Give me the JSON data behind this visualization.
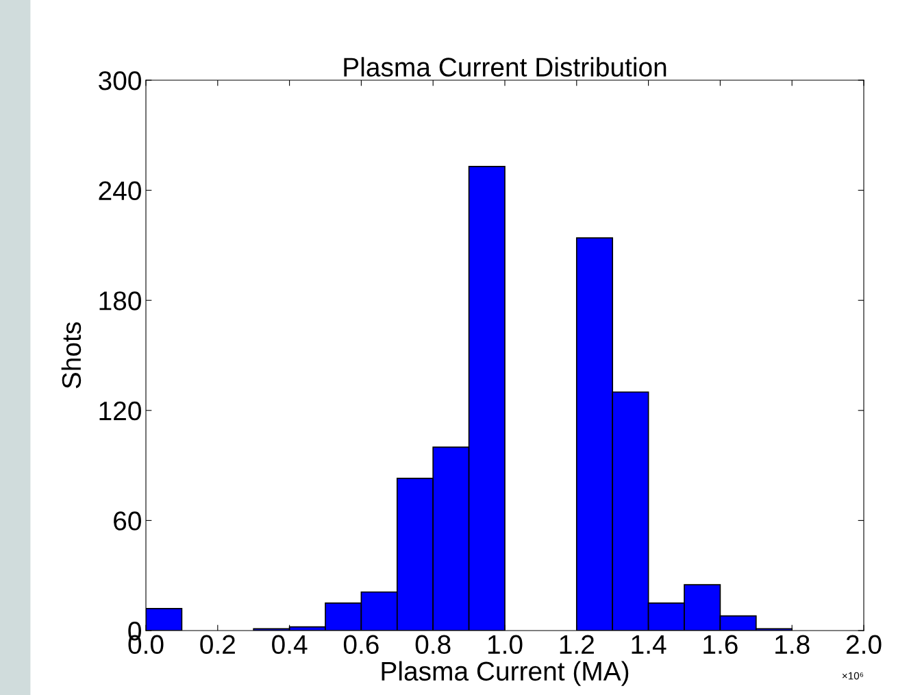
{
  "chart_data": {
    "type": "histogram",
    "title": "Plasma Current Distribution",
    "xlabel": "Plasma Current (MA)",
    "ylabel": "Shots",
    "bins": [
      0.0,
      0.1,
      0.2,
      0.3,
      0.4,
      0.5,
      0.6,
      0.7,
      0.8,
      0.9,
      1.0,
      1.1,
      1.2,
      1.3,
      1.4,
      1.5,
      1.6,
      1.7,
      1.8,
      1.9,
      2.0
    ],
    "values": [
      12,
      0,
      0,
      1,
      2,
      15,
      21,
      83,
      100,
      253,
      0,
      0,
      214,
      130,
      15,
      25,
      8,
      1,
      0,
      0
    ],
    "color": "#0000ff",
    "xlim": [
      0.0,
      2.0
    ],
    "xticks": [
      {
        "value": 0,
        "label": "0.0"
      },
      0.2,
      0.4,
      0.6,
      0.8,
      {
        "value": 1,
        "label": "1.0"
      },
      1.2,
      1.4,
      1.6,
      1.8,
      {
        "value": 2,
        "label": "2.0"
      }
    ],
    "ylim": [
      0,
      300
    ],
    "yticks": [
      0,
      60,
      120,
      180,
      240,
      300
    ],
    "annotations": [
      "×10⁶"
    ],
    "grid": false
  }
}
